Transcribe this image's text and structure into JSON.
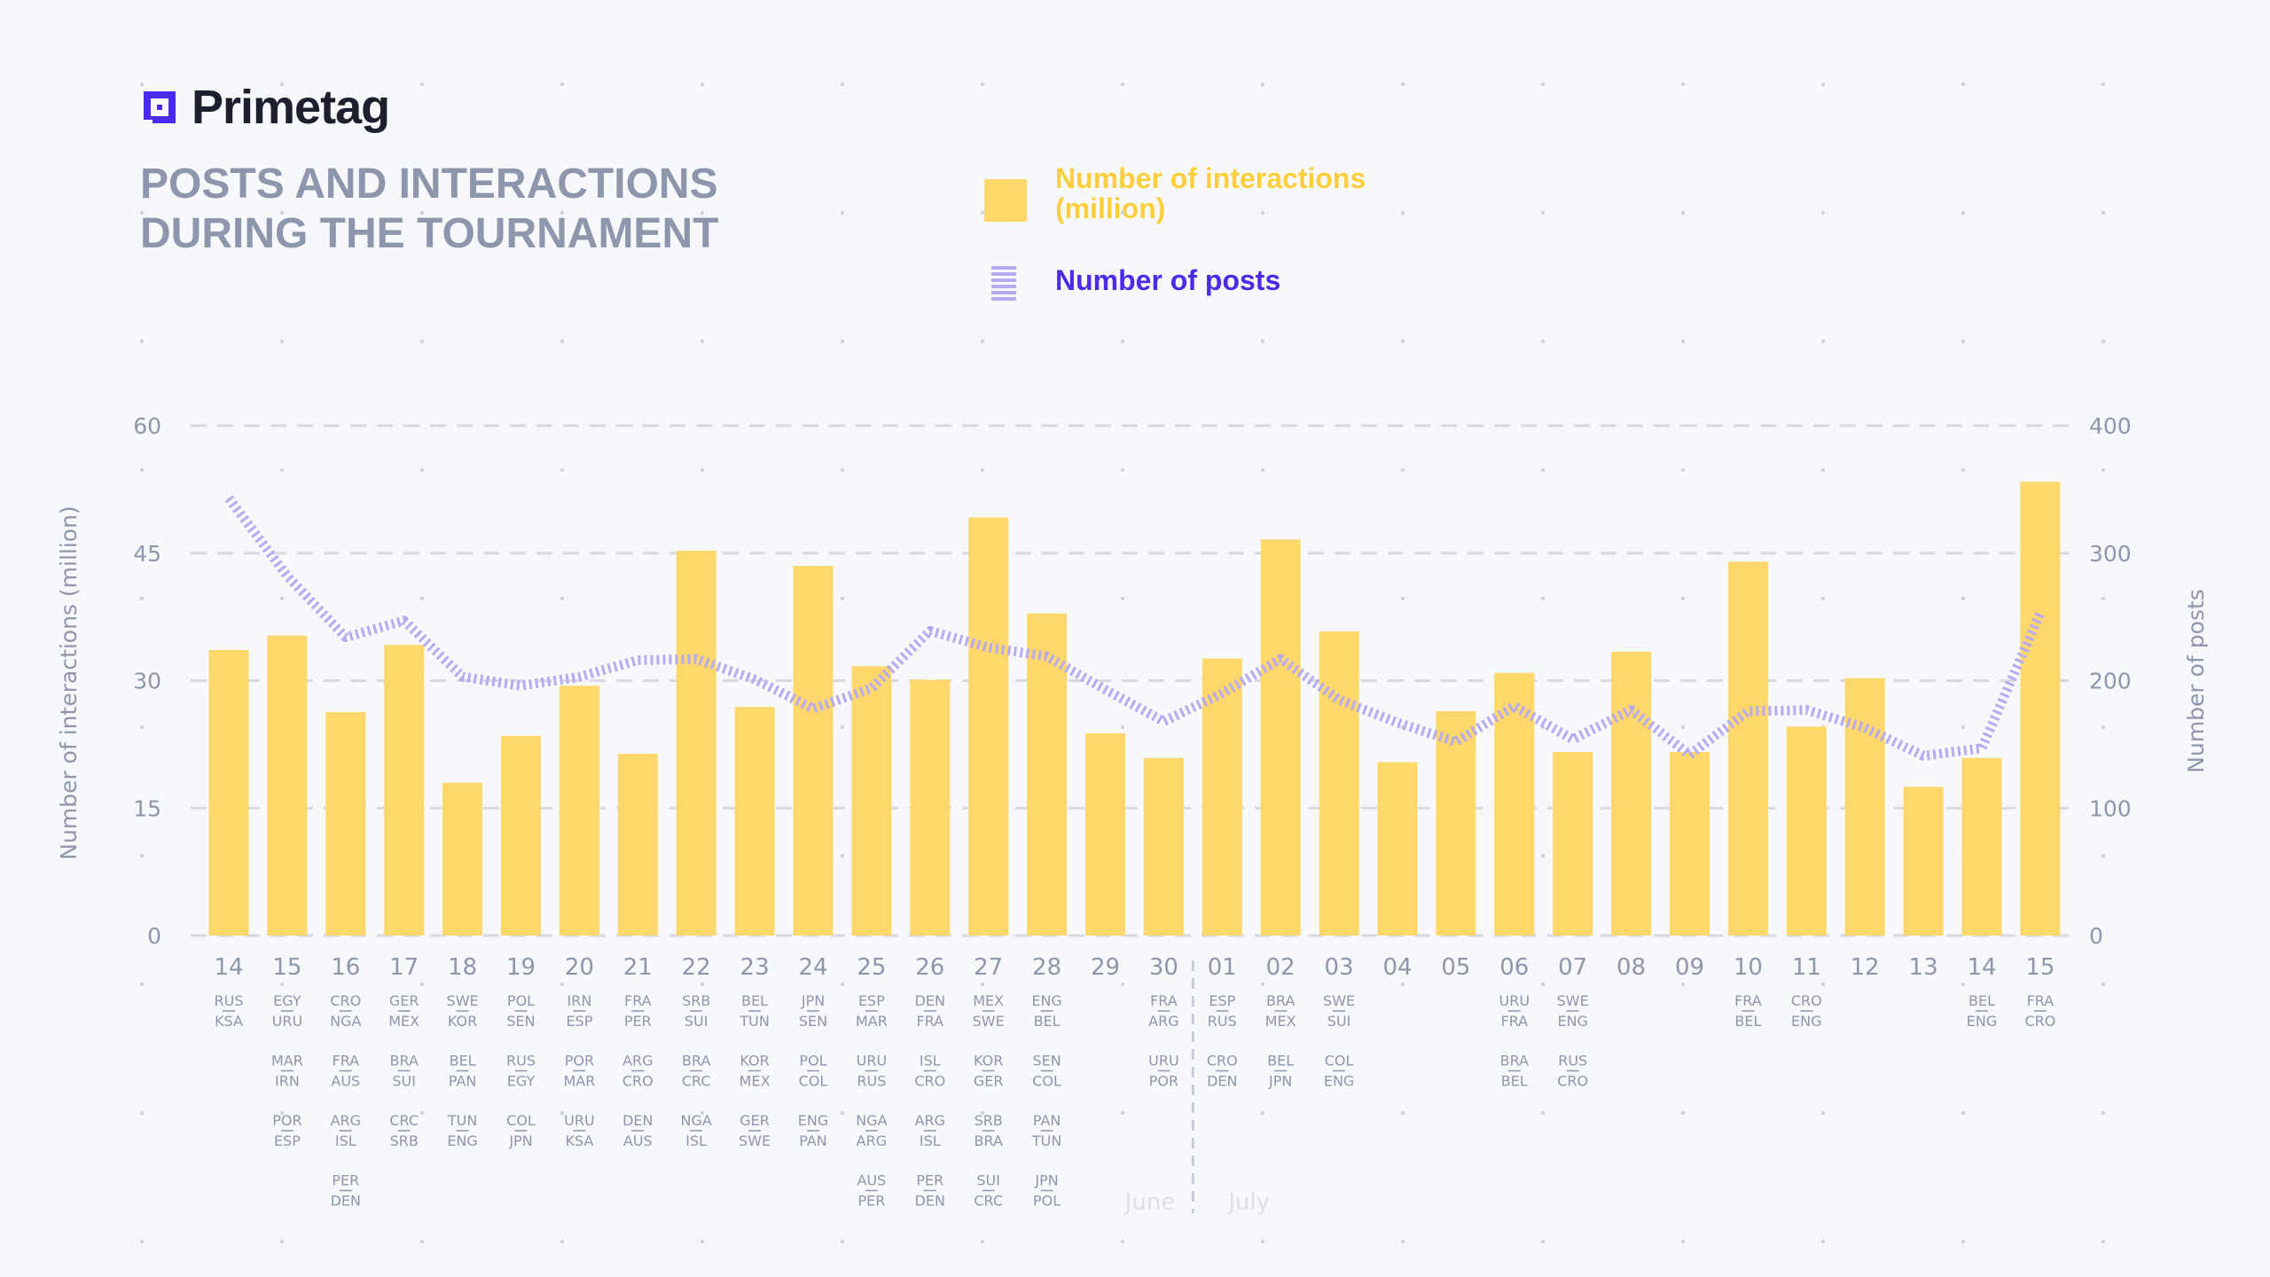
{
  "brand": {
    "name": "Primetag",
    "accent": "#4b2bea"
  },
  "title_lines": [
    "POSTS AND INTERACTIONS",
    "DURING THE TOURNAMENT"
  ],
  "legend": {
    "bars_lines": [
      "Number of interactions",
      "(million)"
    ],
    "line": "Number of posts"
  },
  "chart_data": {
    "type": "bar",
    "ylabel_left": "Number of interactions (million)",
    "ylabel_right": "Number of posts",
    "ylim_left": [
      0,
      60
    ],
    "ylim_right": [
      0,
      400
    ],
    "yticks_left": [
      "60",
      "45",
      "30",
      "15",
      "0"
    ],
    "yticks_right": [
      "400",
      "300",
      "200",
      "100",
      "0"
    ],
    "grid": true,
    "bar_color": "#ffd76a",
    "line_color": "#b7aaf3",
    "month_labels": [
      "June",
      "July"
    ],
    "x": [
      "14",
      "15",
      "16",
      "17",
      "18",
      "19",
      "20",
      "21",
      "22",
      "23",
      "24",
      "25",
      "26",
      "27",
      "28",
      "29",
      "30",
      "01",
      "02",
      "03",
      "04",
      "05",
      "06",
      "07",
      "08",
      "09",
      "10",
      "11",
      "12",
      "13",
      "14",
      "15"
    ],
    "interactions": [
      33.6,
      35.3,
      26.3,
      34.2,
      18.0,
      23.5,
      29.4,
      21.4,
      45.3,
      26.9,
      43.5,
      31.7,
      30.1,
      49.2,
      37.9,
      23.8,
      20.9,
      32.6,
      46.6,
      35.8,
      20.4,
      26.4,
      30.9,
      21.6,
      33.4,
      21.6,
      44.0,
      24.6,
      30.3,
      17.5,
      20.9,
      53.4
    ],
    "posts": [
      343,
      282,
      234,
      247,
      203,
      196,
      203,
      216,
      217,
      201,
      178,
      194,
      239,
      226,
      219,
      193,
      168,
      190,
      217,
      185,
      167,
      152,
      180,
      154,
      177,
      142,
      176,
      177,
      163,
      141,
      147,
      253
    ],
    "matches": [
      [
        [
          "RUS",
          "KSA"
        ]
      ],
      [
        [
          "EGY",
          "URU"
        ],
        [
          "MAR",
          "IRN"
        ],
        [
          "POR",
          "ESP"
        ]
      ],
      [
        [
          "CRO",
          "NGA"
        ],
        [
          "FRA",
          "AUS"
        ],
        [
          "ARG",
          "ISL"
        ],
        [
          "PER",
          "DEN"
        ]
      ],
      [
        [
          "GER",
          "MEX"
        ],
        [
          "BRA",
          "SUI"
        ],
        [
          "CRC",
          "SRB"
        ]
      ],
      [
        [
          "SWE",
          "KOR"
        ],
        [
          "BEL",
          "PAN"
        ],
        [
          "TUN",
          "ENG"
        ]
      ],
      [
        [
          "POL",
          "SEN"
        ],
        [
          "RUS",
          "EGY"
        ],
        [
          "COL",
          "JPN"
        ]
      ],
      [
        [
          "IRN",
          "ESP"
        ],
        [
          "POR",
          "MAR"
        ],
        [
          "URU",
          "KSA"
        ]
      ],
      [
        [
          "FRA",
          "PER"
        ],
        [
          "ARG",
          "CRO"
        ],
        [
          "DEN",
          "AUS"
        ]
      ],
      [
        [
          "SRB",
          "SUI"
        ],
        [
          "BRA",
          "CRC"
        ],
        [
          "NGA",
          "ISL"
        ]
      ],
      [
        [
          "BEL",
          "TUN"
        ],
        [
          "KOR",
          "MEX"
        ],
        [
          "GER",
          "SWE"
        ]
      ],
      [
        [
          "JPN",
          "SEN"
        ],
        [
          "POL",
          "COL"
        ],
        [
          "ENG",
          "PAN"
        ]
      ],
      [
        [
          "ESP",
          "MAR"
        ],
        [
          "URU",
          "RUS"
        ],
        [
          "NGA",
          "ARG"
        ],
        [
          "AUS",
          "PER"
        ]
      ],
      [
        [
          "DEN",
          "FRA"
        ],
        [
          "ISL",
          "CRO"
        ],
        [
          "ARG",
          "ISL"
        ],
        [
          "PER",
          "DEN"
        ]
      ],
      [
        [
          "MEX",
          "SWE"
        ],
        [
          "KOR",
          "GER"
        ],
        [
          "SRB",
          "BRA"
        ],
        [
          "SUI",
          "CRC"
        ]
      ],
      [
        [
          "ENG",
          "BEL"
        ],
        [
          "SEN",
          "COL"
        ],
        [
          "PAN",
          "TUN"
        ],
        [
          "JPN",
          "POL"
        ]
      ],
      [],
      [
        [
          "FRA",
          "ARG"
        ],
        [
          "URU",
          "POR"
        ]
      ],
      [
        [
          "ESP",
          "RUS"
        ],
        [
          "CRO",
          "DEN"
        ]
      ],
      [
        [
          "BRA",
          "MEX"
        ],
        [
          "BEL",
          "JPN"
        ]
      ],
      [
        [
          "SWE",
          "SUI"
        ],
        [
          "COL",
          "ENG"
        ]
      ],
      [],
      [],
      [
        [
          "URU",
          "FRA"
        ],
        [
          "BRA",
          "BEL"
        ]
      ],
      [
        [
          "SWE",
          "ENG"
        ],
        [
          "RUS",
          "CRO"
        ]
      ],
      [],
      [],
      [
        [
          "FRA",
          "BEL"
        ]
      ],
      [
        [
          "CRO",
          "ENG"
        ]
      ],
      [],
      [],
      [
        [
          "BEL",
          "ENG"
        ]
      ],
      [
        [
          "FRA",
          "CRO"
        ]
      ]
    ]
  }
}
